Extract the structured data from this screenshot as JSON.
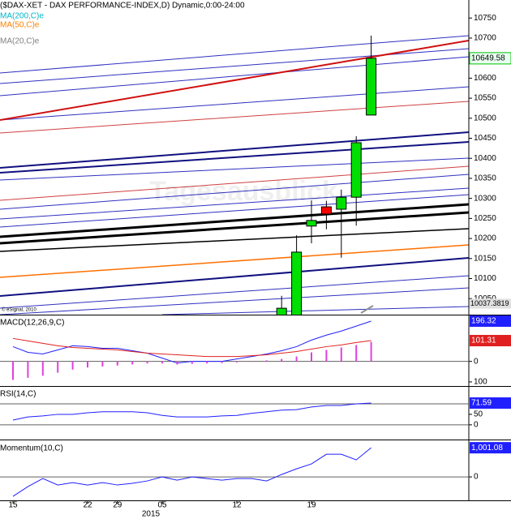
{
  "chart_data": [
    {
      "type": "candlestick",
      "title": "($DAX-XET - DAX PERFORMANCE-INDEX,D) Dynamic,0:00-24:00",
      "legend": [
        {
          "name": "MA(200,C)e",
          "color": "#00b4c8"
        },
        {
          "name": "MA(50,C)e",
          "color": "#ff8000"
        },
        {
          "name": "MA(20,C)e",
          "color": "#808080"
        }
      ],
      "watermark": "Tagesausblick",
      "copyright": "© eSignal, 2010",
      "open": [
        null,
        null,
        null,
        null,
        null,
        null,
        null,
        null,
        null,
        null,
        null,
        null,
        null,
        null,
        null,
        null,
        null,
        null,
        10000,
        10000,
        10231,
        10279,
        10273,
        10303,
        10508
      ],
      "high": [
        null,
        null,
        null,
        null,
        null,
        null,
        null,
        null,
        null,
        null,
        null,
        null,
        null,
        null,
        null,
        null,
        null,
        null,
        10057,
        10208,
        10295,
        10294,
        10322,
        10455,
        10706
      ],
      "low": [
        null,
        null,
        null,
        null,
        null,
        null,
        null,
        null,
        null,
        null,
        null,
        null,
        null,
        null,
        null,
        null,
        null,
        null,
        9990,
        9990,
        10188,
        10223,
        10152,
        10232,
        10508
      ],
      "close": [
        null,
        null,
        null,
        null,
        null,
        null,
        null,
        null,
        null,
        null,
        null,
        null,
        null,
        null,
        null,
        null,
        null,
        null,
        10026,
        10166,
        10245,
        10261,
        10303,
        10439,
        10649.58
      ],
      "up_color": "#00e000",
      "down_color": "#ff0000",
      "level_labels": [
        10037.3819
      ],
      "ylim": [
        10010,
        10795
      ],
      "yticks": [
        10050,
        10100,
        10150,
        10200,
        10250,
        10300,
        10350,
        10400,
        10450,
        10500,
        10550,
        10600,
        10650,
        10700,
        10750
      ]
    },
    {
      "type": "line",
      "title": "MACD(12,26,9,C)",
      "series": [
        {
          "color": "#2020ff",
          "values": [
            72,
            44,
            36,
            56,
            76,
            72,
            64,
            64,
            52,
            40,
            16,
            -8,
            0,
            0,
            0,
            12,
            24,
            36,
            52,
            72,
            104,
            128,
            148,
            172,
            196.32
          ]
        },
        {
          "color": "#e02020",
          "values": [
            112,
            100,
            88,
            76,
            68,
            64,
            60,
            56,
            48,
            40,
            36,
            32,
            28,
            24,
            24,
            24,
            28,
            32,
            40,
            48,
            60,
            72,
            80,
            92,
            101.31
          ]
        },
        {
          "type": "bar",
          "color": "#e040e0",
          "values": [
            -90,
            -80,
            -70,
            -55,
            -40,
            -30,
            -25,
            -20,
            -15,
            -10,
            -10,
            -15,
            -12,
            -10,
            -8,
            -5,
            -2,
            5,
            12,
            24,
            44,
            56,
            68,
            80,
            95
          ]
        }
      ],
      "hlines": [
        0
      ],
      "ylim": [
        -120,
        220
      ],
      "yticks": [
        0,
        {
          "value": -100,
          "label": "100"
        }
      ]
    },
    {
      "type": "line",
      "title": "RSI(14,C)",
      "series": [
        {
          "color": "#2020ff",
          "values": [
            39,
            45,
            47,
            50,
            50,
            53,
            55,
            55,
            55,
            53,
            48,
            45,
            45,
            45,
            47,
            48,
            52,
            55,
            58,
            59,
            64,
            67,
            67,
            70,
            71.59
          ]
        }
      ],
      "hlines": [
        70,
        30
      ],
      "ylim": [
        5,
        101
      ],
      "yticks": [
        50,
        {
          "value": 30,
          "label": "0"
        }
      ]
    },
    {
      "type": "line",
      "title": "Momentum(10,C)",
      "series": [
        {
          "color": "#2020ff",
          "values": [
            -667,
            -334,
            -56,
            -278,
            -195,
            -278,
            -195,
            -278,
            -222,
            -139,
            0,
            -111,
            0,
            -56,
            -111,
            -56,
            -56,
            -139,
            83,
            278,
            445,
            778,
            778,
            584,
            1001.08
          ],
          "value_labels": [
            null,
            null,
            null,
            null,
            null,
            null,
            null,
            null,
            null,
            null,
            null,
            null,
            null,
            null,
            null,
            null,
            null,
            null,
            null,
            null,
            null,
            null,
            null,
            null,
            "1,001.08"
          ]
        }
      ],
      "hlines": [
        0
      ],
      "ylim": [
        -750,
        1200
      ],
      "yticks": [
        0
      ],
      "categories": [
        "15",
        null,
        null,
        null,
        null,
        "22",
        null,
        "29",
        null,
        null,
        "05",
        null,
        null,
        null,
        null,
        "12",
        null,
        null,
        null,
        null,
        "19",
        null,
        null,
        null,
        null
      ],
      "year": "2015"
    }
  ]
}
